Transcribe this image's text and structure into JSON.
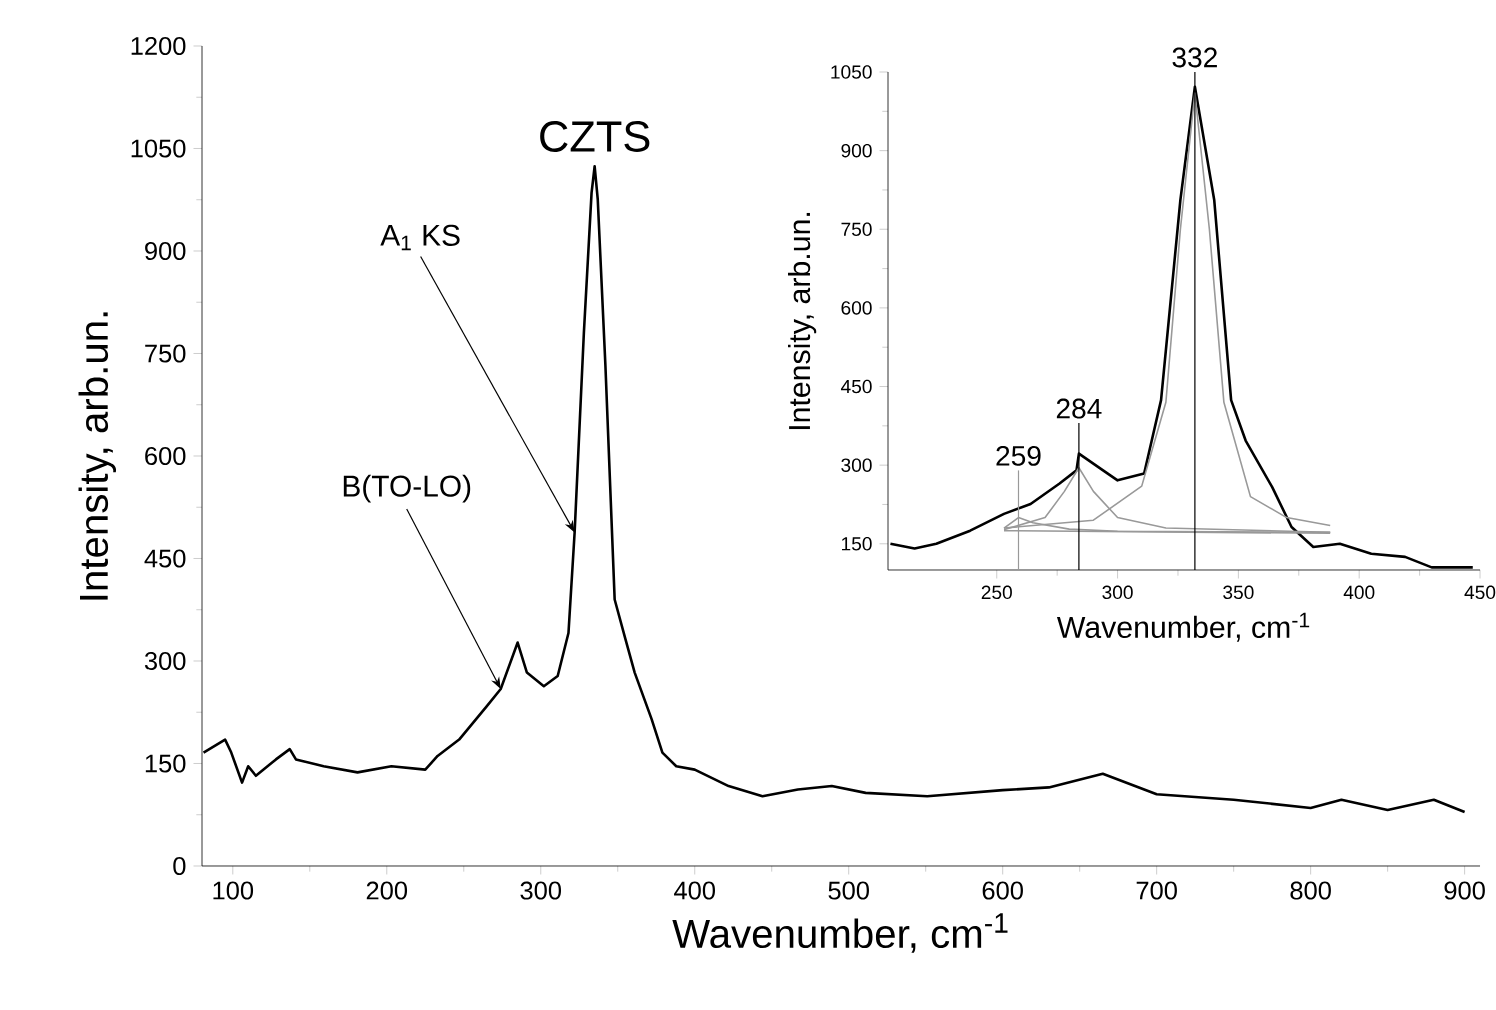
{
  "chart_data": [
    {
      "type": "line",
      "xlabel": "Wavenumber, cm$^{-1}$",
      "ylabel": "Intensity, arb.un.",
      "xlim": [
        80,
        910
      ],
      "ylim": [
        0,
        1200
      ],
      "xticks": [
        100,
        200,
        300,
        400,
        500,
        600,
        700,
        800,
        900
      ],
      "yticks": [
        0,
        150,
        300,
        450,
        600,
        750,
        900,
        1050,
        1200
      ],
      "grid": false,
      "annotations": [
        {
          "text": "CZTS",
          "x": 335,
          "y": 1024
        },
        {
          "text": "A$_{1}$ KS",
          "x": 322,
          "y": 488
        },
        {
          "text": "B(TO-LO)",
          "x": 274,
          "y": 259
        }
      ],
      "series": [
        {
          "color": "#000000",
          "x": [
            81,
            95,
            99,
            106,
            110,
            115,
            128,
            137,
            141,
            159,
            181,
            203,
            225,
            233,
            247,
            265,
            274,
            285,
            291,
            302,
            311,
            318,
            322,
            328,
            333,
            335,
            337,
            342,
            348,
            355,
            361,
            372,
            379,
            388,
            400,
            422,
            444,
            467,
            489,
            511,
            551,
            600,
            630,
            665,
            700,
            750,
            800,
            820,
            850,
            880,
            900
          ],
          "values": [
            166,
            185,
            166,
            122,
            146,
            132,
            156,
            171,
            156,
            146,
            137,
            146,
            141,
            161,
            185,
            234,
            259,
            327,
            283,
            263,
            278,
            341,
            488,
            780,
            985,
            1024,
            976,
            732,
            390,
            332,
            283,
            215,
            166,
            146,
            141,
            117,
            102,
            112,
            117,
            107,
            102,
            111,
            115,
            135,
            105,
            97,
            85,
            97,
            82,
            97,
            79
          ]
        }
      ]
    },
    {
      "type": "line",
      "xlabel": "Wavenumber, cm$^{-1}$",
      "ylabel": "Intensity, arb.un.",
      "xlim": [
        205,
        450
      ],
      "ylim": [
        100,
        1050
      ],
      "xticks": [
        250,
        300,
        350,
        400,
        450
      ],
      "yticks": [
        150,
        300,
        450,
        600,
        750,
        900,
        1050
      ],
      "grid": false,
      "ref_lines": [
        {
          "axis": "x",
          "value": 259,
          "label": "259",
          "color": "#999999"
        },
        {
          "axis": "x",
          "value": 284,
          "label": "284",
          "color": "#000000"
        },
        {
          "axis": "x",
          "value": 332,
          "label": "332",
          "color": "#000000"
        }
      ],
      "series": [
        {
          "color": "#000000",
          "x": [
            206,
            216,
            225,
            239,
            253,
            264,
            276,
            283,
            284,
            294,
            300,
            311,
            318,
            326,
            332,
            340,
            347,
            353,
            364,
            372,
            381,
            392,
            405,
            419,
            430,
            447
          ],
          "values": [
            150,
            141,
            150,
            175,
            207,
            226,
            265,
            290,
            322,
            290,
            271,
            284,
            424,
            806,
            1022,
            806,
            424,
            347,
            258,
            182,
            144,
            150,
            131,
            125,
            105,
            105
          ]
        },
        {
          "color": "#999999",
          "x": [
            253,
            290,
            310,
            320,
            326,
            332,
            338,
            344,
            355,
            370,
            388
          ],
          "values": [
            180,
            195,
            260,
            420,
            750,
            1010,
            750,
            420,
            240,
            200,
            185
          ]
        },
        {
          "color": "#999999",
          "x": [
            253,
            270,
            278,
            284,
            290,
            300,
            320,
            388
          ],
          "values": [
            177,
            200,
            250,
            295,
            250,
            200,
            180,
            172
          ]
        },
        {
          "color": "#999999",
          "x": [
            253,
            259,
            265,
            280,
            300,
            388
          ],
          "values": [
            180,
            200,
            190,
            178,
            174,
            172
          ]
        },
        {
          "color": "#999999",
          "x": [
            253,
            388
          ],
          "values": [
            175,
            170
          ]
        }
      ]
    }
  ]
}
